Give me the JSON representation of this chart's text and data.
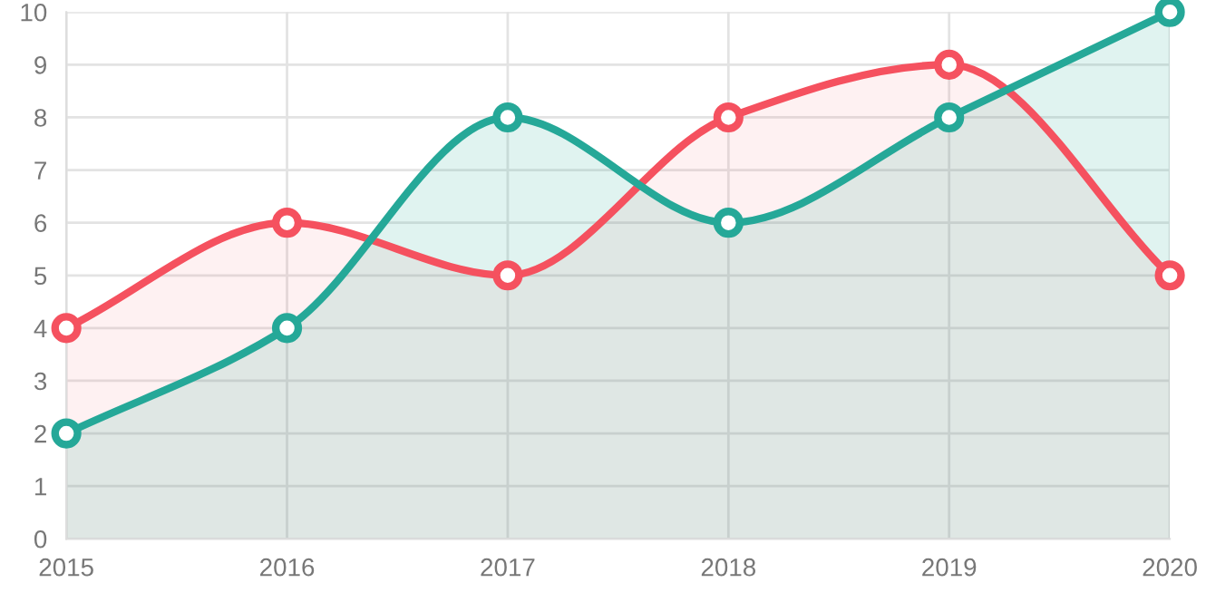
{
  "chart_data": {
    "type": "area",
    "categories": [
      "2015",
      "2016",
      "2017",
      "2018",
      "2019",
      "2020"
    ],
    "series": [
      {
        "color": "#f5515f",
        "values": [
          4,
          6,
          5,
          8,
          9,
          5
        ]
      },
      {
        "color": "#25a898",
        "values": [
          2,
          4,
          8,
          6,
          8,
          10
        ]
      }
    ],
    "ylim": [
      0,
      10
    ],
    "yticks": [
      0,
      1,
      2,
      3,
      4,
      5,
      6,
      7,
      8,
      9,
      10
    ],
    "grid": true,
    "marker": "circle",
    "line_style": "solid"
  }
}
